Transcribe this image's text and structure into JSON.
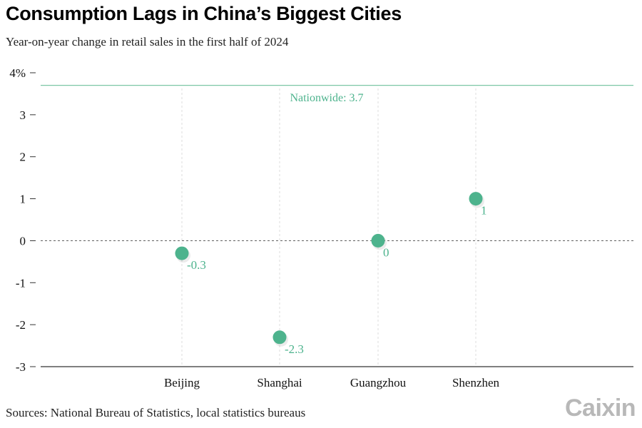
{
  "header": {
    "title": "Consumption Lags in China’s Biggest Cities",
    "subtitle": "Year-on-year change in retail sales in the first half of 2024"
  },
  "footer": {
    "sources": "Sources: National Bureau of Statistics, local statistics bureaus",
    "logo": "Caixin"
  },
  "colors": {
    "accent": "#4db38d",
    "reference_line": "#7cc7a6",
    "axis": "#333333",
    "grid": "#dddddd",
    "text": "#111111"
  },
  "chart_data": {
    "type": "scatter",
    "title": "Consumption Lags in China’s Biggest Cities",
    "subtitle": "Year-on-year change in retail sales in the first half of 2024",
    "xlabel": "",
    "ylabel": "",
    "categories": [
      "Beijing",
      "Shanghai",
      "Guangzhou",
      "Shenzhen"
    ],
    "values": [
      -0.3,
      -2.3,
      0,
      1
    ],
    "data_labels": [
      "-0.3",
      "-2.3",
      "0",
      "1"
    ],
    "ylim": [
      -3,
      4
    ],
    "yticks": [
      -3,
      -2,
      -1,
      0,
      1,
      2,
      3,
      4
    ],
    "ytick_labels": [
      "-3",
      "-2",
      "-1",
      "0",
      "1",
      "2",
      "3",
      "4%"
    ],
    "reference_line": {
      "value": 3.7,
      "label": "Nationwide: 3.7"
    },
    "zero_line": true,
    "grid": "vertical dashed per category"
  }
}
